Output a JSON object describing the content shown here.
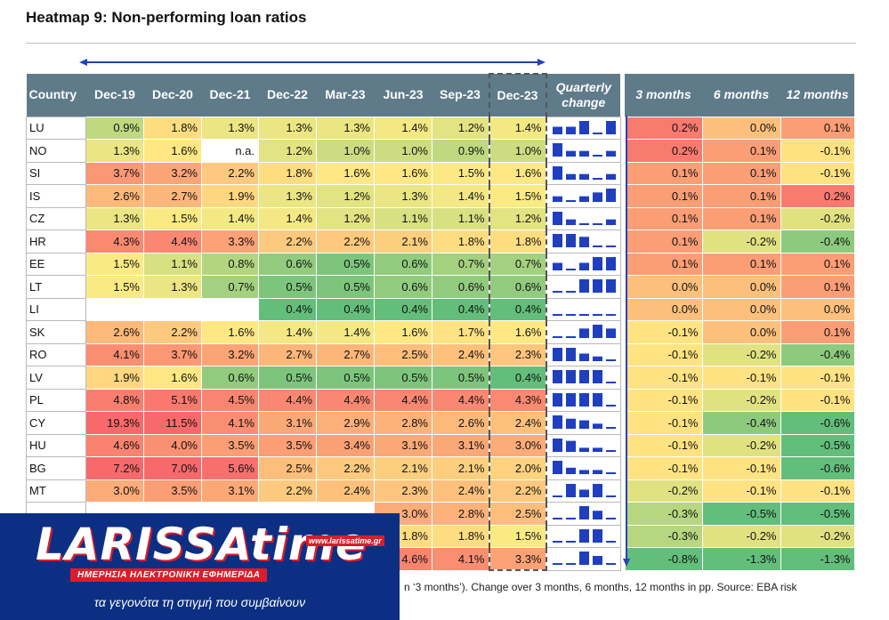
{
  "title": "Heatmap 9: Non-performing loan ratios",
  "caption": "n ‘3 months’). Change over 3 months, 6 months, 12 months in pp. Source: EBA risk",
  "logo": {
    "main": "LARISSAtime",
    "url": "www.larissatime.gr",
    "subtitle": "ΗΜΕΡΗΣΙΑ ΗΛΕΚΤΡΟΝΙΚΗ ΕΦΗΜΕΡΙΔΑ",
    "slogan": "τα γεγονότα τη στιγμή που συμβαίνουν"
  },
  "colors": {
    "header": "#5f7b8a",
    "spark": "#1f3fbf",
    "arrow": "#2443b8"
  },
  "chart_data": {
    "type": "table",
    "title": "Heatmap 9: Non-performing loan ratios",
    "columns": [
      "Country",
      "Dec-19",
      "Dec-20",
      "Dec-21",
      "Dec-22",
      "Mar-23",
      "Jun-23",
      "Sep-23",
      "Dec-23",
      "Quarterly change",
      "3 months",
      "6 months",
      "12 months"
    ],
    "rows": [
      {
        "country": "LU",
        "ratios": [
          "0.9%",
          "1.8%",
          "1.3%",
          "1.3%",
          "1.3%",
          "1.4%",
          "1.2%",
          "1.4%"
        ],
        "changes": [
          "0.2%",
          "0.0%",
          "0.1%"
        ]
      },
      {
        "country": "NO",
        "ratios": [
          "1.3%",
          "1.6%",
          "n.a.",
          "1.2%",
          "1.0%",
          "1.0%",
          "0.9%",
          "1.0%"
        ],
        "changes": [
          "0.2%",
          "0.1%",
          "-0.1%"
        ]
      },
      {
        "country": "SI",
        "ratios": [
          "3.7%",
          "3.2%",
          "2.2%",
          "1.8%",
          "1.6%",
          "1.6%",
          "1.5%",
          "1.6%"
        ],
        "changes": [
          "0.1%",
          "0.1%",
          "-0.1%"
        ]
      },
      {
        "country": "IS",
        "ratios": [
          "2.6%",
          "2.7%",
          "1.9%",
          "1.3%",
          "1.2%",
          "1.3%",
          "1.4%",
          "1.5%"
        ],
        "changes": [
          "0.1%",
          "0.1%",
          "0.2%"
        ]
      },
      {
        "country": "CZ",
        "ratios": [
          "1.3%",
          "1.5%",
          "1.4%",
          "1.4%",
          "1.2%",
          "1.1%",
          "1.1%",
          "1.2%"
        ],
        "changes": [
          "0.1%",
          "0.1%",
          "-0.2%"
        ]
      },
      {
        "country": "HR",
        "ratios": [
          "4.3%",
          "4.4%",
          "3.3%",
          "2.2%",
          "2.2%",
          "2.1%",
          "1.8%",
          "1.8%"
        ],
        "changes": [
          "0.1%",
          "-0.2%",
          "-0.4%"
        ]
      },
      {
        "country": "EE",
        "ratios": [
          "1.5%",
          "1.1%",
          "0.8%",
          "0.6%",
          "0.5%",
          "0.6%",
          "0.7%",
          "0.7%"
        ],
        "changes": [
          "0.1%",
          "0.1%",
          "0.1%"
        ]
      },
      {
        "country": "LT",
        "ratios": [
          "1.5%",
          "1.3%",
          "0.7%",
          "0.5%",
          "0.5%",
          "0.6%",
          "0.6%",
          "0.6%"
        ],
        "changes": [
          "0.0%",
          "0.0%",
          "0.1%"
        ]
      },
      {
        "country": "LI",
        "ratios": [
          "",
          "",
          "",
          "0.4%",
          "0.4%",
          "0.4%",
          "0.4%",
          "0.4%"
        ],
        "changes": [
          "0.0%",
          "0.0%",
          "0.0%"
        ]
      },
      {
        "country": "SK",
        "ratios": [
          "2.6%",
          "2.2%",
          "1.6%",
          "1.4%",
          "1.4%",
          "1.6%",
          "1.7%",
          "1.6%"
        ],
        "changes": [
          "-0.1%",
          "0.0%",
          "0.1%"
        ]
      },
      {
        "country": "RO",
        "ratios": [
          "4.1%",
          "3.7%",
          "3.2%",
          "2.7%",
          "2.7%",
          "2.5%",
          "2.4%",
          "2.3%"
        ],
        "changes": [
          "-0.1%",
          "-0.2%",
          "-0.4%"
        ]
      },
      {
        "country": "LV",
        "ratios": [
          "1.9%",
          "1.6%",
          "0.6%",
          "0.5%",
          "0.5%",
          "0.5%",
          "0.5%",
          "0.4%"
        ],
        "changes": [
          "-0.1%",
          "-0.1%",
          "-0.1%"
        ]
      },
      {
        "country": "PL",
        "ratios": [
          "4.8%",
          "5.1%",
          "4.5%",
          "4.4%",
          "4.4%",
          "4.4%",
          "4.4%",
          "4.3%"
        ],
        "changes": [
          "-0.1%",
          "-0.2%",
          "-0.1%"
        ]
      },
      {
        "country": "CY",
        "ratios": [
          "19.3%",
          "11.5%",
          "4.1%",
          "3.1%",
          "2.9%",
          "2.8%",
          "2.6%",
          "2.4%"
        ],
        "changes": [
          "-0.1%",
          "-0.4%",
          "-0.6%"
        ]
      },
      {
        "country": "HU",
        "ratios": [
          "4.6%",
          "4.0%",
          "3.5%",
          "3.5%",
          "3.4%",
          "3.1%",
          "3.1%",
          "3.0%"
        ],
        "changes": [
          "-0.1%",
          "-0.2%",
          "-0.5%"
        ]
      },
      {
        "country": "BG",
        "ratios": [
          "7.2%",
          "7.0%",
          "5.6%",
          "2.5%",
          "2.2%",
          "2.1%",
          "2.1%",
          "2.0%"
        ],
        "changes": [
          "-0.1%",
          "-0.1%",
          "-0.6%"
        ]
      },
      {
        "country": "MT",
        "ratios": [
          "3.0%",
          "3.5%",
          "3.1%",
          "2.2%",
          "2.4%",
          "2.3%",
          "2.4%",
          "2.2%"
        ],
        "changes": [
          "-0.2%",
          "-0.1%",
          "-0.1%"
        ]
      },
      {
        "country": "",
        "ratios": [
          "",
          "",
          "",
          "",
          "",
          "3.0%",
          "2.8%",
          "2.5%"
        ],
        "changes": [
          "-0.3%",
          "-0.5%",
          "-0.5%"
        ]
      },
      {
        "country": "",
        "ratios": [
          "",
          "",
          "",
          "",
          "",
          "1.8%",
          "1.8%",
          "1.5%"
        ],
        "changes": [
          "-0.3%",
          "-0.2%",
          "-0.2%"
        ]
      },
      {
        "country": "",
        "ratios": [
          "",
          "",
          "",
          "",
          "",
          "4.6%",
          "4.1%",
          "3.3%"
        ],
        "changes": [
          "-0.8%",
          "-1.3%",
          "-1.3%"
        ]
      }
    ]
  }
}
